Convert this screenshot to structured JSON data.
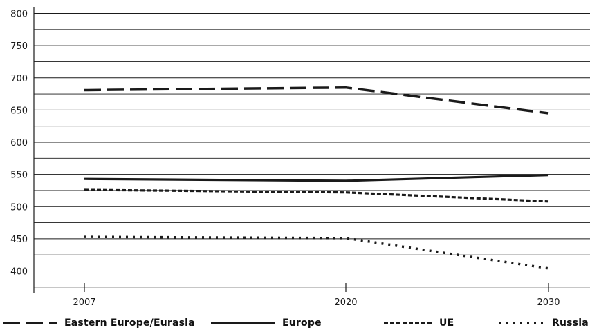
{
  "chart_data": {
    "type": "line",
    "title": "",
    "xlabel": "",
    "ylabel": "",
    "x": [
      "2007",
      "2020",
      "2030"
    ],
    "ylim": [
      380,
      805
    ],
    "yticks": [
      400,
      450,
      500,
      550,
      600,
      650,
      700,
      750,
      800
    ],
    "grid": "horizontal",
    "legend_position": "bottom",
    "series": [
      {
        "name": "Eastern Europe/Eurasia",
        "values": [
          681,
          685,
          645
        ],
        "style": "long-dash",
        "color": "#1a1a1a"
      },
      {
        "name": "Europe",
        "values": [
          543,
          540,
          549
        ],
        "style": "solid",
        "color": "#1a1a1a"
      },
      {
        "name": "UE",
        "values": [
          526,
          522,
          508
        ],
        "style": "short-dash",
        "color": "#1a1a1a"
      },
      {
        "name": "Russia",
        "values": [
          453,
          451,
          404
        ],
        "style": "dotted",
        "color": "#1a1a1a"
      }
    ]
  }
}
